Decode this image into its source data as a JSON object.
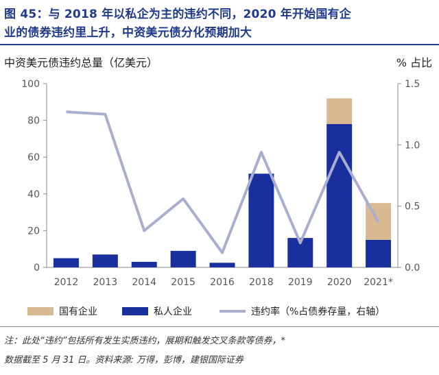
{
  "title": {
    "line1": "图 45：与 2018 年以私企为主的违约不同，2020 年开始国有企",
    "line2": "业的债券违约里上升，中资美元债分化预期加大"
  },
  "chart_data": {
    "type": "bar",
    "stacked": true,
    "categories": [
      "2012",
      "2013",
      "2014",
      "2015",
      "2016",
      "2018",
      "2019",
      "2020",
      "2021*"
    ],
    "ylabel": "中资美元债违约总量（亿美元）",
    "y2label": "% 占比",
    "ylim": [
      0,
      100
    ],
    "y2lim": [
      0,
      1.5
    ],
    "yticks": [
      0,
      20,
      40,
      60,
      80,
      100
    ],
    "y2ticks": [
      "0.0",
      "0.5",
      "1.0",
      "1.5"
    ],
    "series": [
      {
        "name": "私人企业",
        "kind": "bar",
        "color": "#1a2f9e",
        "values": [
          5,
          7,
          3,
          9,
          2.5,
          51,
          16,
          78,
          15
        ]
      },
      {
        "name": "国有企业",
        "kind": "bar",
        "color": "#d8b991",
        "values": [
          0,
          0,
          0,
          0,
          0,
          0,
          0,
          14,
          20
        ]
      },
      {
        "name": "违约率（%占债券存量，右轴）",
        "kind": "line",
        "axis": "right",
        "color": "#a9aed0",
        "values": [
          1.27,
          1.25,
          0.3,
          0.56,
          0.12,
          0.94,
          0.2,
          0.94,
          0.37
        ]
      }
    ]
  },
  "note": {
    "line1": "注：此处“违约”包括所有发生实质违约，展期和触发交叉条款等债券，*",
    "line2": "数据截至 5 月 31 日。资料来源: 万得，彭博，建银国际证券"
  }
}
